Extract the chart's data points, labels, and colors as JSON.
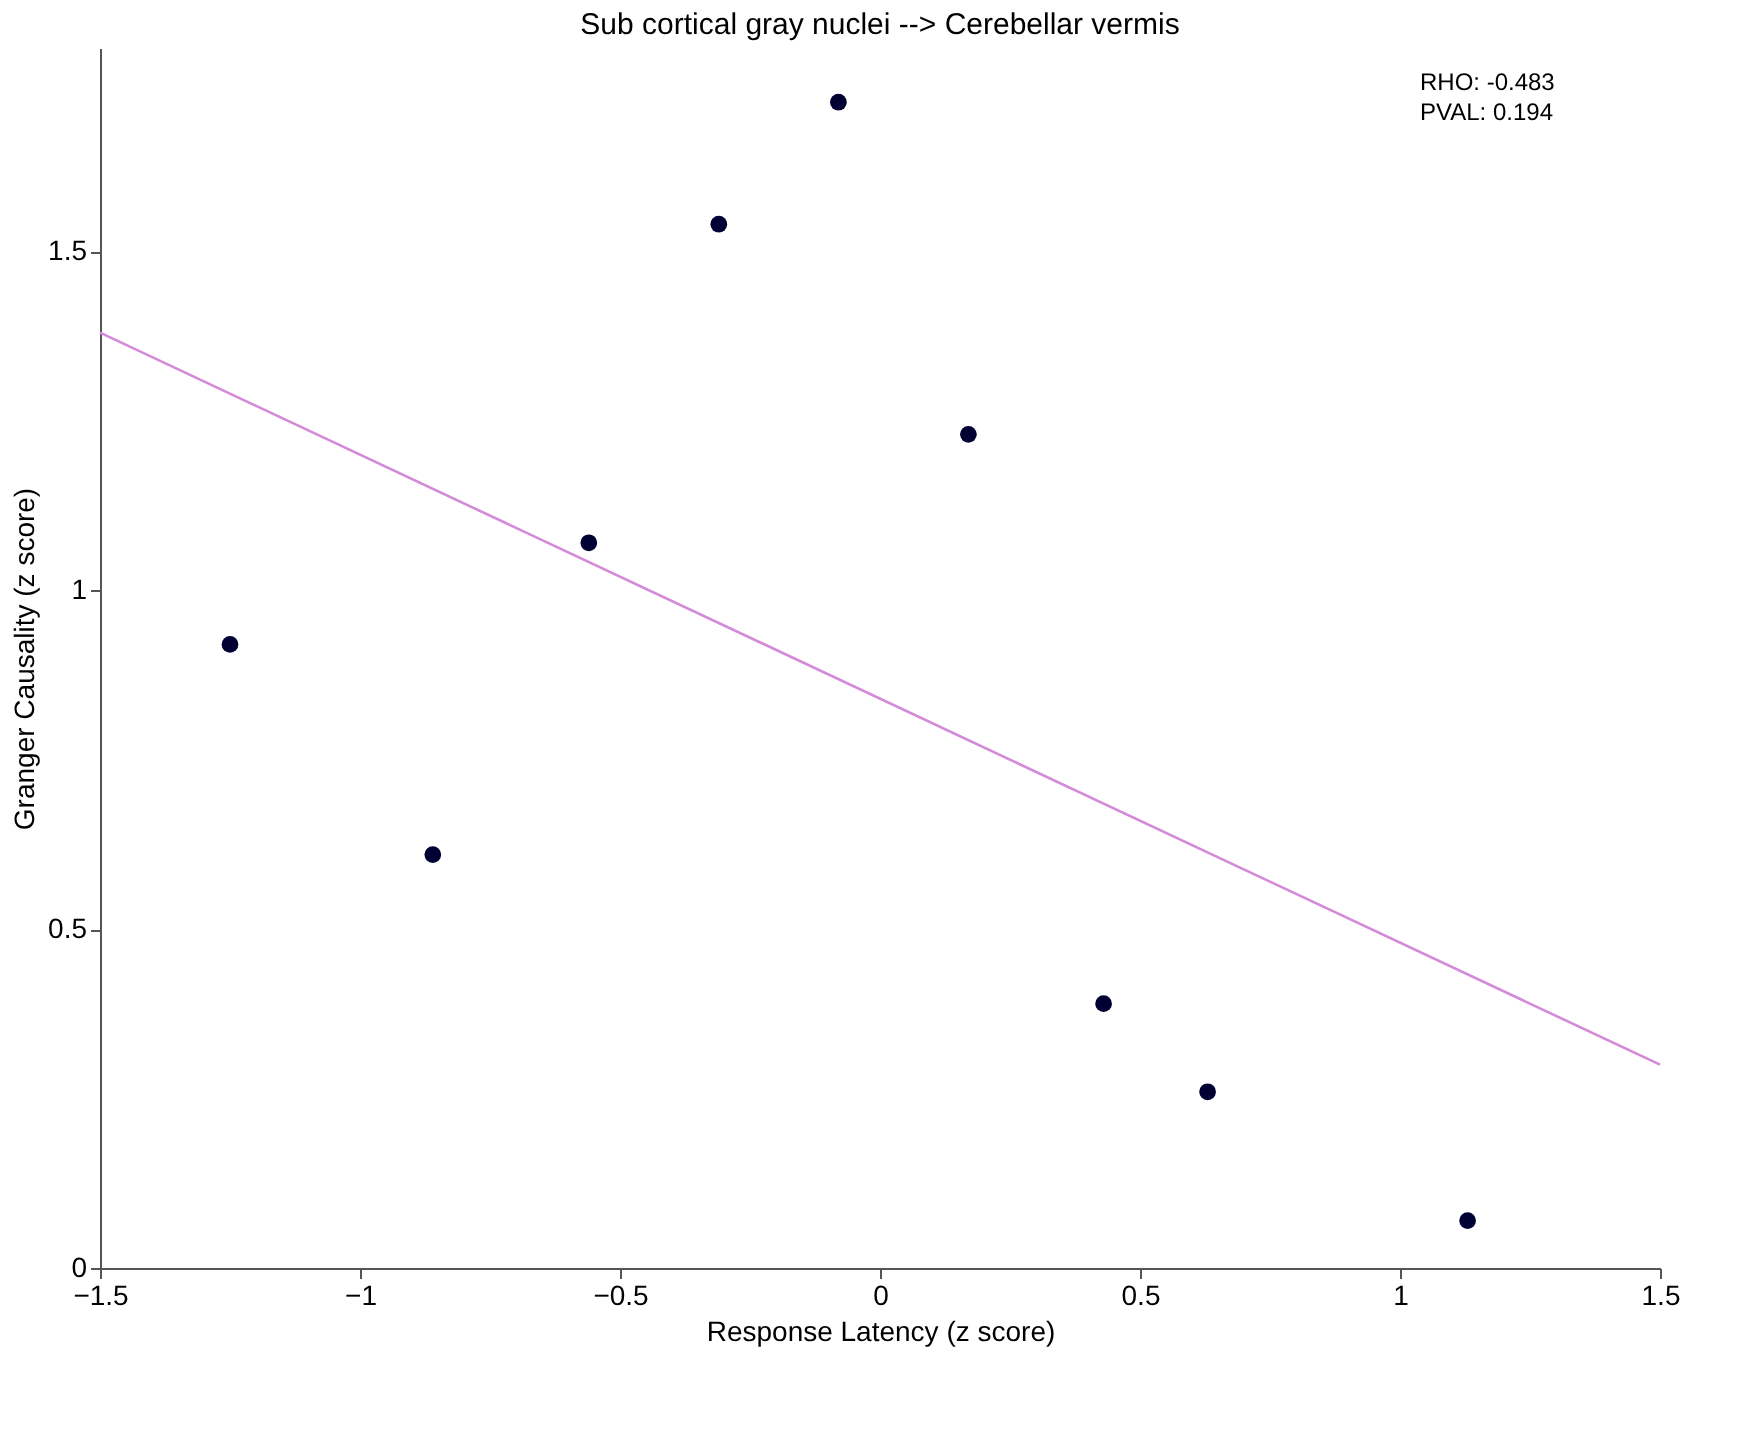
{
  "chart_data": {
    "type": "scatter",
    "title": "Sub cortical gray nuclei --> Cerebellar vermis",
    "xlabel": "Response Latency (z score)",
    "ylabel": "Granger Causality (z score)",
    "x": [
      -1.25,
      -0.86,
      -0.56,
      -0.31,
      -0.08,
      0.17,
      0.43,
      0.63,
      1.13
    ],
    "series": [
      {
        "color": "#000033",
        "marker": "circle",
        "values": [
          0.92,
          0.61,
          1.07,
          1.54,
          1.72,
          1.23,
          0.39,
          0.26,
          0.07
        ]
      },
      {
        "type": "line",
        "color": "#d48ad8",
        "marker": "none",
        "line_style": "solid",
        "x": [
          -1.5,
          1.5
        ],
        "values": [
          1.38,
          0.3
        ]
      }
    ],
    "xlim": [
      -1.5,
      1.5
    ],
    "xticks": [
      -1.5,
      -1,
      -0.5,
      0,
      0.5,
      1,
      1.5
    ],
    "ylim": [
      0,
      1.8
    ],
    "yticks": [
      0,
      0.5,
      1,
      1.5
    ],
    "grid": false,
    "annotations": [
      "RHO: -0.483",
      "PVAL: 0.194"
    ]
  }
}
